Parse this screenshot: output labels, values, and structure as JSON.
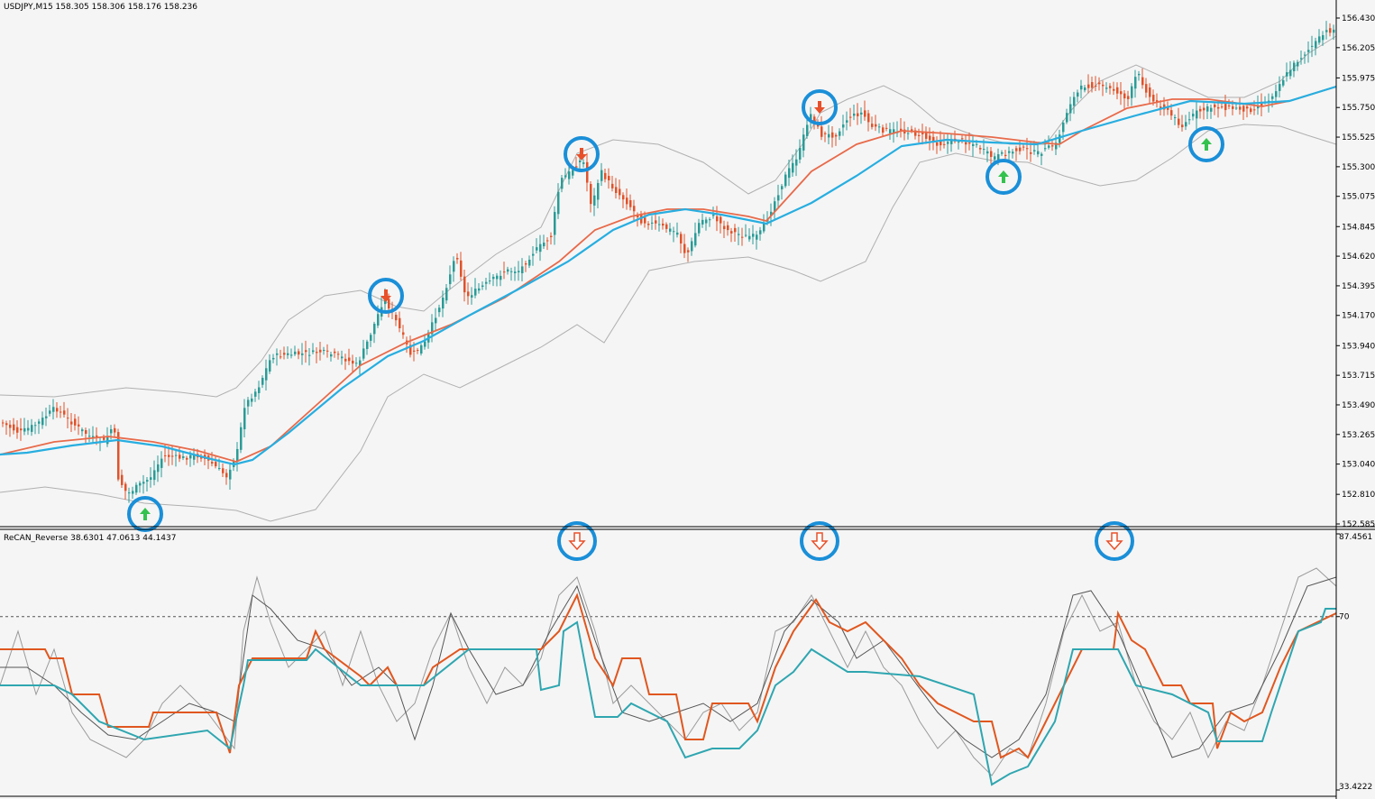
{
  "main_panel": {
    "header": "USDJPY,M15  158.305 158.306 158.176 158.236",
    "y_ticks": [
      "156.430",
      "156.205",
      "155.975",
      "155.750",
      "155.525",
      "155.300",
      "155.075",
      "154.845",
      "154.620",
      "154.395",
      "154.170",
      "153.940",
      "153.715",
      "153.490",
      "153.265",
      "153.040",
      "152.810",
      "152.585"
    ]
  },
  "indicator_panel": {
    "header": "ReCAN_Reverse 38.6301 47.0613 44.1437",
    "y_ticks": [
      "87.4561",
      "70",
      "33.4222"
    ],
    "level": 70
  },
  "colors": {
    "bg": "#f5f5f5",
    "bull": "#2a9b96",
    "bear": "#e0522a",
    "ma_slow": "#27aee0",
    "ma_fast": "#e86a4a",
    "band": "#b0b0b0",
    "marker_ring": "#1a8fd8",
    "arrow_up": "#33c24d",
    "arrow_down": "#e8502a",
    "ind_teal": "#2fa6b0",
    "ind_orange": "#e0571f",
    "ind_gray": "#555555"
  },
  "markers": {
    "main_up_icon": "up-arrow-icon",
    "main_down_icon": "down-arrow-icon",
    "indicator_icon": "hollow-down-arrow-icon"
  }
}
